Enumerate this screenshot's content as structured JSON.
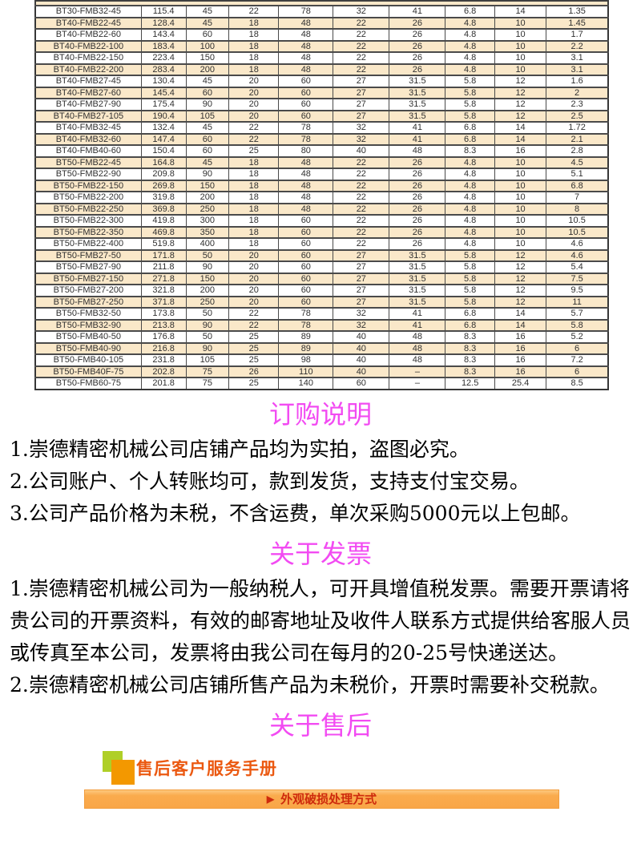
{
  "table": {
    "rows": [
      [
        "BT30-FMB32-45",
        "115.4",
        "45",
        "22",
        "78",
        "32",
        "41",
        "6.8",
        "14",
        "1.35"
      ],
      [
        "BT40-FMB22-45",
        "128.4",
        "45",
        "18",
        "48",
        "22",
        "26",
        "4.8",
        "10",
        "1.45"
      ],
      [
        "BT40-FMB22-60",
        "143.4",
        "60",
        "18",
        "48",
        "22",
        "26",
        "4.8",
        "10",
        "1.7"
      ],
      [
        "BT40-FMB22-100",
        "183.4",
        "100",
        "18",
        "48",
        "22",
        "26",
        "4.8",
        "10",
        "2.2"
      ],
      [
        "BT40-FMB22-150",
        "223.4",
        "150",
        "18",
        "48",
        "22",
        "26",
        "4.8",
        "10",
        "3.1"
      ],
      [
        "BT40-FMB22-200",
        "283.4",
        "200",
        "18",
        "48",
        "22",
        "26",
        "4.8",
        "10",
        "3.1"
      ],
      [
        "BT40-FMB27-45",
        "130.4",
        "45",
        "20",
        "60",
        "27",
        "31.5",
        "5.8",
        "12",
        "1.6"
      ],
      [
        "BT40-FMB27-60",
        "145.4",
        "60",
        "20",
        "60",
        "27",
        "31.5",
        "5.8",
        "12",
        "2"
      ],
      [
        "BT40-FMB27-90",
        "175.4",
        "90",
        "20",
        "60",
        "27",
        "31.5",
        "5.8",
        "12",
        "2.3"
      ],
      [
        "BT40-FMB27-105",
        "190.4",
        "105",
        "20",
        "60",
        "27",
        "31.5",
        "5.8",
        "12",
        "2.5"
      ],
      [
        "BT40-FMB32-45",
        "132.4",
        "45",
        "22",
        "78",
        "32",
        "41",
        "6.8",
        "14",
        "1.72"
      ],
      [
        "BT40-FMB32-60",
        "147.4",
        "60",
        "22",
        "78",
        "32",
        "41",
        "6.8",
        "14",
        "2.1"
      ],
      [
        "BT40-FMB40-60",
        "150.4",
        "60",
        "25",
        "80",
        "40",
        "48",
        "8.3",
        "16",
        "2.8"
      ],
      [
        "BT50-FMB22-45",
        "164.8",
        "45",
        "18",
        "48",
        "22",
        "26",
        "4.8",
        "10",
        "4.5"
      ],
      [
        "BT50-FMB22-90",
        "209.8",
        "90",
        "18",
        "48",
        "22",
        "26",
        "4.8",
        "10",
        "5.1"
      ],
      [
        "BT50-FMB22-150",
        "269.8",
        "150",
        "18",
        "48",
        "22",
        "26",
        "4.8",
        "10",
        "6.8"
      ],
      [
        "BT50-FMB22-200",
        "319.8",
        "200",
        "18",
        "48",
        "22",
        "26",
        "4.8",
        "10",
        "7"
      ],
      [
        "BT50-FMB22-250",
        "369.8",
        "250",
        "18",
        "48",
        "22",
        "26",
        "4.8",
        "10",
        "8"
      ],
      [
        "BT50-FMB22-300",
        "419.8",
        "300",
        "18",
        "60",
        "22",
        "26",
        "4.8",
        "10",
        "10.5"
      ],
      [
        "BT50-FMB22-350",
        "469.8",
        "350",
        "18",
        "60",
        "22",
        "26",
        "4.8",
        "10",
        "10.5"
      ],
      [
        "BT50-FMB22-400",
        "519.8",
        "400",
        "18",
        "60",
        "22",
        "26",
        "4.8",
        "10",
        "4.6"
      ],
      [
        "BT50-FMB27-50",
        "171.8",
        "50",
        "20",
        "60",
        "27",
        "31.5",
        "5.8",
        "12",
        "4.6"
      ],
      [
        "BT50-FMB27-90",
        "211.8",
        "90",
        "20",
        "60",
        "27",
        "31.5",
        "5.8",
        "12",
        "5.4"
      ],
      [
        "BT50-FMB27-150",
        "271.8",
        "150",
        "20",
        "60",
        "27",
        "31.5",
        "5.8",
        "12",
        "7.5"
      ],
      [
        "BT50-FMB27-200",
        "321.8",
        "200",
        "20",
        "60",
        "27",
        "31.5",
        "5.8",
        "12",
        "9.5"
      ],
      [
        "BT50-FMB27-250",
        "371.8",
        "250",
        "20",
        "60",
        "27",
        "31.5",
        "5.8",
        "12",
        "11"
      ],
      [
        "BT50-FMB32-50",
        "173.8",
        "50",
        "22",
        "78",
        "32",
        "41",
        "6.8",
        "14",
        "5.7"
      ],
      [
        "BT50-FMB32-90",
        "213.8",
        "90",
        "22",
        "78",
        "32",
        "41",
        "6.8",
        "14",
        "5.8"
      ],
      [
        "BT50-FMB40-50",
        "176.8",
        "50",
        "25",
        "89",
        "40",
        "48",
        "8.3",
        "16",
        "5.2"
      ],
      [
        "BT50-FMB40-90",
        "216.8",
        "90",
        "25",
        "89",
        "40",
        "48",
        "8.3",
        "16",
        "6"
      ],
      [
        "BT50-FMB40-105",
        "231.8",
        "105",
        "25",
        "98",
        "40",
        "48",
        "8.3",
        "16",
        "7.2"
      ],
      [
        "BT50-FMB40F-75",
        "202.8",
        "75",
        "26",
        "110",
        "40",
        "–",
        "8.3",
        "16",
        "6"
      ],
      [
        "BT50-FMB60-75",
        "201.8",
        "75",
        "25",
        "140",
        "60",
        "–",
        "12.5",
        "25.4",
        "8.5"
      ]
    ]
  },
  "sections": {
    "order": {
      "title": "订购说明",
      "items": [
        "1.崇德精密机械公司店铺产品均为实拍，盗图必究。",
        "2.公司账户、个人转账均可，款到发货，支持支付宝交易。",
        "3.公司产品价格为未税，不含运费，单次采购5000元以上包邮。"
      ]
    },
    "invoice": {
      "title": "关于发票",
      "items": [
        "1.崇德精密机械公司为一般纳税人，可开具增值税发票。需要开票请将贵公司的开票资料，有效的邮寄地址及收件人联系方式提供给客服人员或传真至本公司，发票将由我公司在每月的20-25号快递送达。",
        "2.崇德精密机械公司店铺所售产品为未税价，开票时需要补交税款。"
      ]
    },
    "aftersale": {
      "title": "关于售后"
    }
  },
  "service": {
    "title": "售后客户服务手册",
    "banner_arrow": "▶",
    "banner_label": "外观破损处理方式"
  },
  "colors": {
    "row_stripe": "#fae8c9",
    "table_border": "#4a4a4a",
    "heading_magenta": "#f24bf2",
    "banner_orange": "#faab4d",
    "banner_text_red": "#ce2b0d",
    "service_title_orange": "#eb5911",
    "logo_green": "#afcf27",
    "logo_orange": "#f39800"
  }
}
